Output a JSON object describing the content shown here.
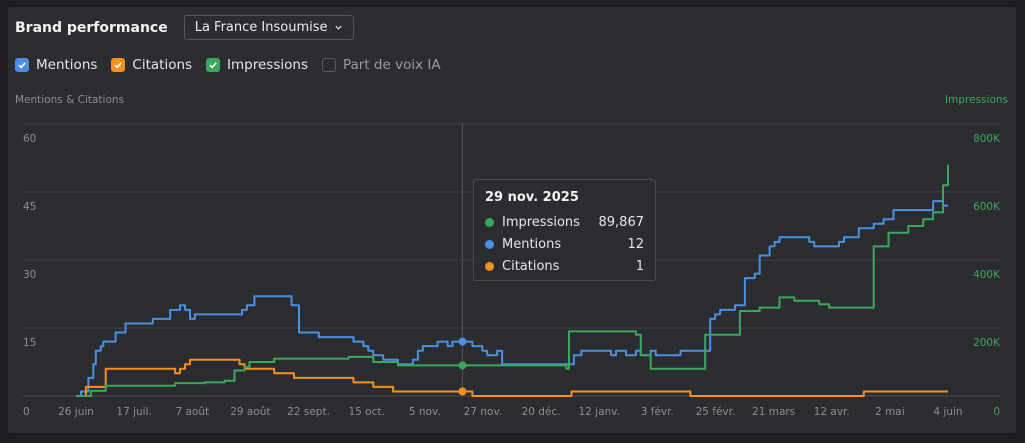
{
  "header": {
    "title": "Brand performance",
    "brand_select": "La France Insoumise"
  },
  "legend": [
    {
      "label": "Mentions",
      "checked": true,
      "color": "#4a90e2"
    },
    {
      "label": "Citations",
      "checked": true,
      "color": "#f5901e"
    },
    {
      "label": "Impressions",
      "checked": true,
      "color": "#3aa85c"
    },
    {
      "label": "Part de voix IA",
      "checked": false,
      "color": "#5a5c61"
    }
  ],
  "tooltip": {
    "date": "29 nov. 2025",
    "rows": [
      {
        "name": "Impressions",
        "value": "89,867",
        "color": "#3aa85c"
      },
      {
        "name": "Mentions",
        "value": "12",
        "color": "#4a90e2"
      },
      {
        "name": "Citations",
        "value": "1",
        "color": "#f5901e"
      }
    ]
  },
  "chart_data": {
    "type": "line",
    "left_axis_title": "Mentions & Citations",
    "right_axis_title": "Impressions",
    "y_left_ticks": [
      "0",
      "15",
      "30",
      "45",
      "60"
    ],
    "y_right_ticks": [
      "0",
      "200K",
      "400K",
      "600K",
      "800K"
    ],
    "ylim_left": [
      0,
      60
    ],
    "ylim_right": [
      0,
      800000
    ],
    "x_ticks": [
      "26 juin",
      "17 juil.",
      "7 août",
      "29 août",
      "22 sept.",
      "15 oct.",
      "5 nov.",
      "27 nov.",
      "20 déc.",
      "12 janv.",
      "3 févr.",
      "25 févr.",
      "21 mars",
      "12 avr.",
      "2 mai",
      "4 juin"
    ],
    "x_range_days": [
      0,
      352
    ],
    "grid": true,
    "hover_day": 156,
    "series": [
      {
        "name": "Mentions",
        "axis": "left",
        "color": "#4a90e2",
        "points": [
          [
            0,
            0
          ],
          [
            2,
            1
          ],
          [
            3,
            1
          ],
          [
            5,
            4
          ],
          [
            7,
            7
          ],
          [
            8,
            10
          ],
          [
            10,
            11
          ],
          [
            11,
            12
          ],
          [
            14,
            12
          ],
          [
            16,
            14
          ],
          [
            20,
            16
          ],
          [
            24,
            16
          ],
          [
            30,
            16
          ],
          [
            31,
            17
          ],
          [
            36,
            17
          ],
          [
            38,
            19
          ],
          [
            40,
            19
          ],
          [
            42,
            20
          ],
          [
            44,
            19
          ],
          [
            46,
            17
          ],
          [
            48,
            18
          ],
          [
            53,
            18
          ],
          [
            60,
            18
          ],
          [
            64,
            18
          ],
          [
            67,
            19
          ],
          [
            69,
            20
          ],
          [
            72,
            22
          ],
          [
            74,
            22
          ],
          [
            80,
            22
          ],
          [
            86,
            22
          ],
          [
            87,
            20
          ],
          [
            90,
            14
          ],
          [
            94,
            14
          ],
          [
            98,
            13
          ],
          [
            110,
            13
          ],
          [
            112,
            12
          ],
          [
            116,
            11
          ],
          [
            118,
            10
          ],
          [
            120,
            9
          ],
          [
            124,
            8
          ],
          [
            128,
            8
          ],
          [
            130,
            7
          ],
          [
            134,
            7
          ],
          [
            136,
            8
          ],
          [
            138,
            10
          ],
          [
            140,
            11
          ],
          [
            142,
            11
          ],
          [
            146,
            12
          ],
          [
            150,
            11
          ],
          [
            152,
            12
          ],
          [
            156,
            12
          ],
          [
            160,
            11
          ],
          [
            164,
            10
          ],
          [
            166,
            9
          ],
          [
            170,
            10
          ],
          [
            172,
            7
          ],
          [
            178,
            7
          ],
          [
            184,
            7
          ],
          [
            190,
            7
          ],
          [
            192,
            7
          ],
          [
            200,
            7
          ],
          [
            201,
            9
          ],
          [
            204,
            10
          ],
          [
            210,
            10
          ],
          [
            214,
            10
          ],
          [
            216,
            9
          ],
          [
            218,
            10
          ],
          [
            222,
            9
          ],
          [
            226,
            10
          ],
          [
            228,
            9
          ],
          [
            230,
            9
          ],
          [
            232,
            10
          ],
          [
            234,
            9
          ],
          [
            240,
            9
          ],
          [
            244,
            10
          ],
          [
            248,
            10
          ],
          [
            254,
            10
          ],
          [
            256,
            17
          ],
          [
            258,
            18
          ],
          [
            260,
            19
          ],
          [
            263,
            19
          ],
          [
            266,
            20
          ],
          [
            268,
            20
          ],
          [
            270,
            26
          ],
          [
            274,
            27
          ],
          [
            276,
            31
          ],
          [
            280,
            33
          ],
          [
            282,
            34
          ],
          [
            284,
            35
          ],
          [
            290,
            35
          ],
          [
            294,
            35
          ],
          [
            296,
            34
          ],
          [
            298,
            33
          ],
          [
            306,
            33
          ],
          [
            308,
            34
          ],
          [
            310,
            35
          ],
          [
            314,
            35
          ],
          [
            316,
            37
          ],
          [
            320,
            37
          ],
          [
            322,
            38
          ],
          [
            326,
            39
          ],
          [
            330,
            41
          ],
          [
            338,
            41
          ],
          [
            342,
            41
          ],
          [
            344,
            41
          ],
          [
            346,
            43
          ],
          [
            350,
            42
          ],
          [
            352,
            42
          ]
        ]
      },
      {
        "name": "Citations",
        "axis": "left",
        "color": "#f5901e",
        "points": [
          [
            0,
            0
          ],
          [
            2,
            0
          ],
          [
            4,
            2
          ],
          [
            10,
            2
          ],
          [
            12,
            6
          ],
          [
            20,
            6
          ],
          [
            28,
            6
          ],
          [
            38,
            6
          ],
          [
            40,
            5
          ],
          [
            42,
            6
          ],
          [
            44,
            7
          ],
          [
            46,
            8
          ],
          [
            56,
            8
          ],
          [
            62,
            8
          ],
          [
            64,
            8
          ],
          [
            66,
            7
          ],
          [
            68,
            6
          ],
          [
            74,
            6
          ],
          [
            80,
            5
          ],
          [
            86,
            5
          ],
          [
            88,
            4
          ],
          [
            96,
            4
          ],
          [
            108,
            4
          ],
          [
            112,
            3
          ],
          [
            114,
            3
          ],
          [
            120,
            2
          ],
          [
            124,
            2
          ],
          [
            128,
            1
          ],
          [
            136,
            1
          ],
          [
            150,
            1
          ],
          [
            160,
            0
          ],
          [
            170,
            0
          ],
          [
            188,
            0
          ],
          [
            200,
            1
          ],
          [
            230,
            1
          ],
          [
            248,
            0
          ],
          [
            264,
            0
          ],
          [
            280,
            0
          ],
          [
            300,
            0
          ],
          [
            318,
            1
          ],
          [
            334,
            1
          ],
          [
            340,
            1
          ],
          [
            352,
            1
          ]
        ]
      },
      {
        "name": "Impressions",
        "axis": "right",
        "color": "#3aa85c",
        "points": [
          [
            0,
            0
          ],
          [
            6,
            15000
          ],
          [
            12,
            30000
          ],
          [
            24,
            30000
          ],
          [
            40,
            38000
          ],
          [
            52,
            40000
          ],
          [
            60,
            45000
          ],
          [
            64,
            75000
          ],
          [
            68,
            85000
          ],
          [
            70,
            100000
          ],
          [
            80,
            110000
          ],
          [
            92,
            110000
          ],
          [
            110,
            115000
          ],
          [
            120,
            100000
          ],
          [
            130,
            90000
          ],
          [
            150,
            90000
          ],
          [
            156,
            89867
          ],
          [
            172,
            90000
          ],
          [
            190,
            90000
          ],
          [
            198,
            80000
          ],
          [
            199,
            190000
          ],
          [
            220,
            190000
          ],
          [
            226,
            180000
          ],
          [
            228,
            120000
          ],
          [
            232,
            80000
          ],
          [
            244,
            80000
          ],
          [
            250,
            80000
          ],
          [
            254,
            180000
          ],
          [
            262,
            180000
          ],
          [
            268,
            250000
          ],
          [
            276,
            260000
          ],
          [
            284,
            290000
          ],
          [
            290,
            280000
          ],
          [
            300,
            270000
          ],
          [
            304,
            260000
          ],
          [
            310,
            260000
          ],
          [
            320,
            260000
          ],
          [
            322,
            440000
          ],
          [
            328,
            480000
          ],
          [
            336,
            500000
          ],
          [
            342,
            520000
          ],
          [
            346,
            540000
          ],
          [
            350,
            620000
          ],
          [
            352,
            680000
          ]
        ]
      }
    ]
  }
}
